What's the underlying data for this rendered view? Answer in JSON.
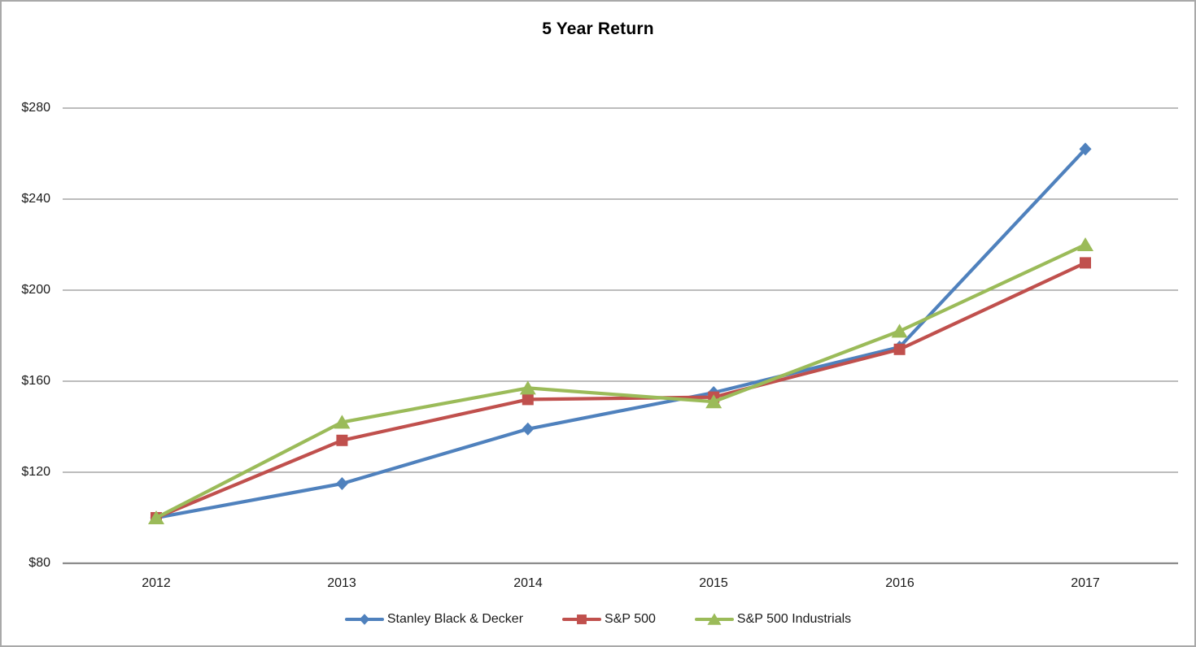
{
  "chart_data": {
    "type": "line",
    "title": "5 Year Return",
    "categories": [
      "2012",
      "2013",
      "2014",
      "2015",
      "2016",
      "2017"
    ],
    "y_ticks": [
      "$280",
      "$240",
      "$200",
      "$160",
      "$120",
      "$80"
    ],
    "y_tick_values": [
      280,
      240,
      200,
      160,
      120,
      80
    ],
    "ylim": [
      80,
      280
    ],
    "xlabel": "",
    "ylabel": "",
    "grid": true,
    "legend_position": "bottom",
    "series": [
      {
        "name": "Stanley Black & Decker",
        "marker": "diamond",
        "color": "#4F81BD",
        "values": [
          100,
          115,
          139,
          155,
          175,
          262
        ]
      },
      {
        "name": "S&P 500",
        "marker": "square",
        "color": "#C0504D",
        "values": [
          100,
          134,
          152,
          153,
          174,
          212
        ]
      },
      {
        "name": "S&P 500 Industrials",
        "marker": "triangle",
        "color": "#9BBB59",
        "values": [
          100,
          142,
          157,
          151,
          182,
          220
        ]
      }
    ]
  },
  "colors": {
    "gridline": "#a6a6a6",
    "axis_line": "#8c8c8c",
    "border": "#a9a9a9",
    "background": "#ffffff",
    "text": "#1a1a1a"
  }
}
